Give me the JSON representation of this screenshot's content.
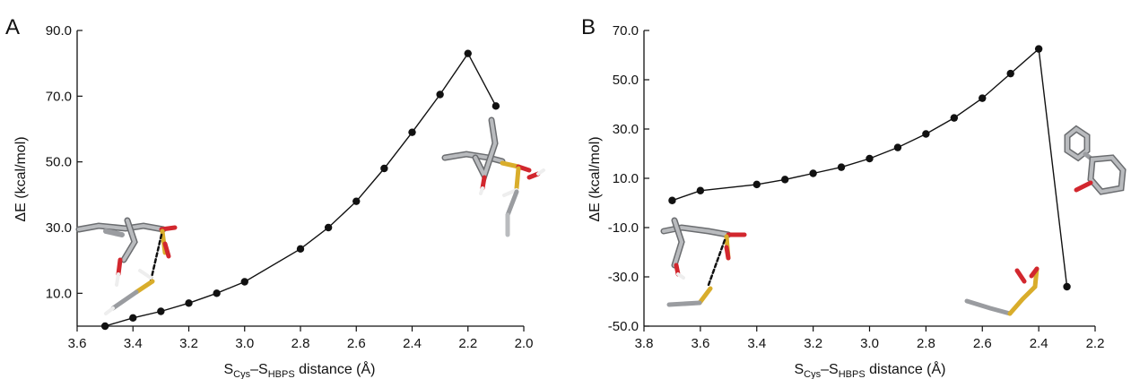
{
  "chart_data": [
    {
      "panel": "A",
      "type": "line",
      "x": [
        3.5,
        3.4,
        3.3,
        3.2,
        3.1,
        3.0,
        2.8,
        2.7,
        2.6,
        2.5,
        2.4,
        2.3,
        2.2,
        2.1
      ],
      "y": [
        0.0,
        2.5,
        4.5,
        7.0,
        10.0,
        13.5,
        23.5,
        30.0,
        38.0,
        48.0,
        59.0,
        70.5,
        83.0,
        67.0
      ],
      "xlim": [
        3.6,
        2.0
      ],
      "ylim": [
        0.0,
        90.0
      ],
      "xticks": [
        3.6,
        3.4,
        3.2,
        3.0,
        2.8,
        2.6,
        2.4,
        2.2,
        2.0
      ],
      "xtick_labels": [
        "3.6",
        "3.4",
        "3.2",
        "3.0",
        "2.8",
        "2.6",
        "2.4",
        "2.2",
        "2.0"
      ],
      "yticks": [
        10,
        30,
        50,
        70,
        90
      ],
      "ytick_labels": [
        "10.0",
        "30.0",
        "50.0",
        "70.0",
        "90.0"
      ],
      "ylabel": "ΔE (kcal/mol)",
      "xlabel": {
        "s1": "S",
        "sub1": "Cys",
        "dash": "–S",
        "sub2": "HBPS",
        "rest": " distance (Å)"
      }
    },
    {
      "panel": "B",
      "type": "line",
      "x": [
        3.7,
        3.6,
        3.4,
        3.3,
        3.2,
        3.1,
        3.0,
        2.9,
        2.8,
        2.7,
        2.6,
        2.5,
        2.4,
        2.3
      ],
      "y": [
        1.0,
        5.0,
        7.5,
        9.5,
        12.0,
        14.5,
        18.0,
        22.5,
        28.0,
        34.5,
        42.5,
        52.5,
        62.5,
        -34.0
      ],
      "xlim": [
        3.8,
        2.2
      ],
      "ylim": [
        -50.0,
        70.0
      ],
      "xticks": [
        3.8,
        3.6,
        3.4,
        3.2,
        3.0,
        2.8,
        2.6,
        2.4,
        2.2
      ],
      "xtick_labels": [
        "3.8",
        "3.6",
        "3.4",
        "3.2",
        "3.0",
        "2.8",
        "2.6",
        "2.4",
        "2.2"
      ],
      "yticks": [
        -50,
        -30,
        -10,
        10,
        30,
        50,
        70
      ],
      "ytick_labels": [
        "-50.0",
        "-30.0",
        "-10.0",
        "10.0",
        "30.0",
        "50.0",
        "70.0"
      ],
      "ylabel": "ΔE (kcal/mol)",
      "xlabel": {
        "s1": "S",
        "sub1": "Cys",
        "dash": "–S",
        "sub2": "HBPS",
        "rest": " distance (Å)"
      }
    }
  ],
  "colors": {
    "line": "#111111",
    "marker": "#111111",
    "carbon": "#9a9ca0",
    "sulfur": "#d9ad2b",
    "oxygen": "#d2272e",
    "hydrogen": "#f2f2f2"
  }
}
